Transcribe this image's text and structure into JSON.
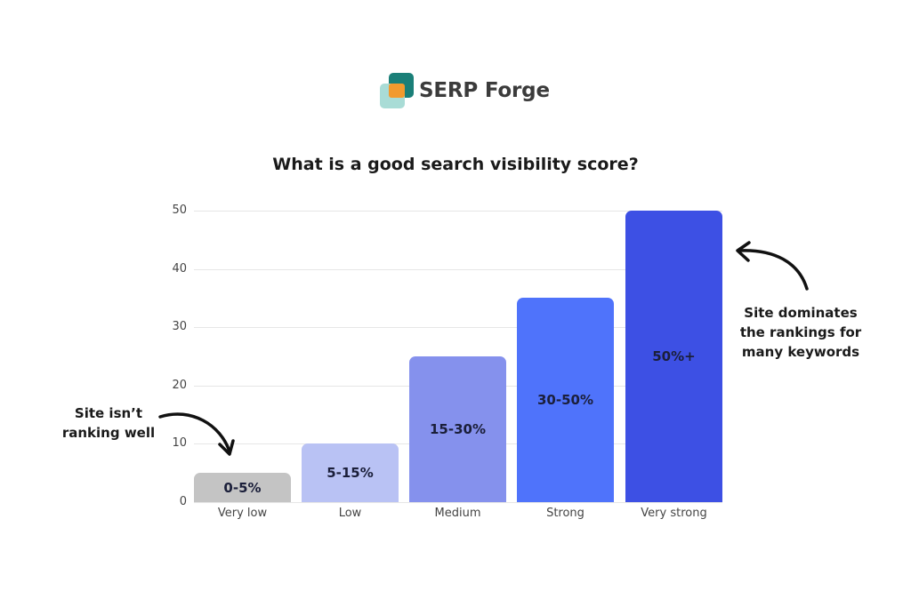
{
  "brand": {
    "name": "SERP Forge",
    "logo_colors": {
      "back": "#1a7f78",
      "front": "#a9dcd6",
      "overlap": "#f29a2e"
    }
  },
  "chart_data": {
    "type": "bar",
    "title": "What is a good search visibility score?",
    "categories": [
      "Very low",
      "Low",
      "Medium",
      "Strong",
      "Very strong"
    ],
    "values": [
      5,
      10,
      25,
      35,
      50
    ],
    "bar_labels": [
      "0-5%",
      "5-15%",
      "15-30%",
      "30-50%",
      "50%+"
    ],
    "colors": [
      "#c4c4c4",
      "#b9c2f4",
      "#8591ed",
      "#4f73fb",
      "#3d50e4"
    ],
    "xlabel": "",
    "ylabel": "",
    "ylim": [
      0,
      50
    ],
    "yticks": [
      0,
      10,
      20,
      30,
      40,
      50
    ],
    "grid": true,
    "legend": null,
    "annotations": [
      {
        "text": "Site isn't ranking well",
        "lines": [
          "Site isn’t",
          "ranking well"
        ],
        "points_to": "Very low"
      },
      {
        "text": "Site dominates the rankings for many keywords",
        "lines": [
          "Site dominates",
          "the rankings for",
          "many keywords"
        ],
        "points_to": "Very strong"
      }
    ]
  }
}
